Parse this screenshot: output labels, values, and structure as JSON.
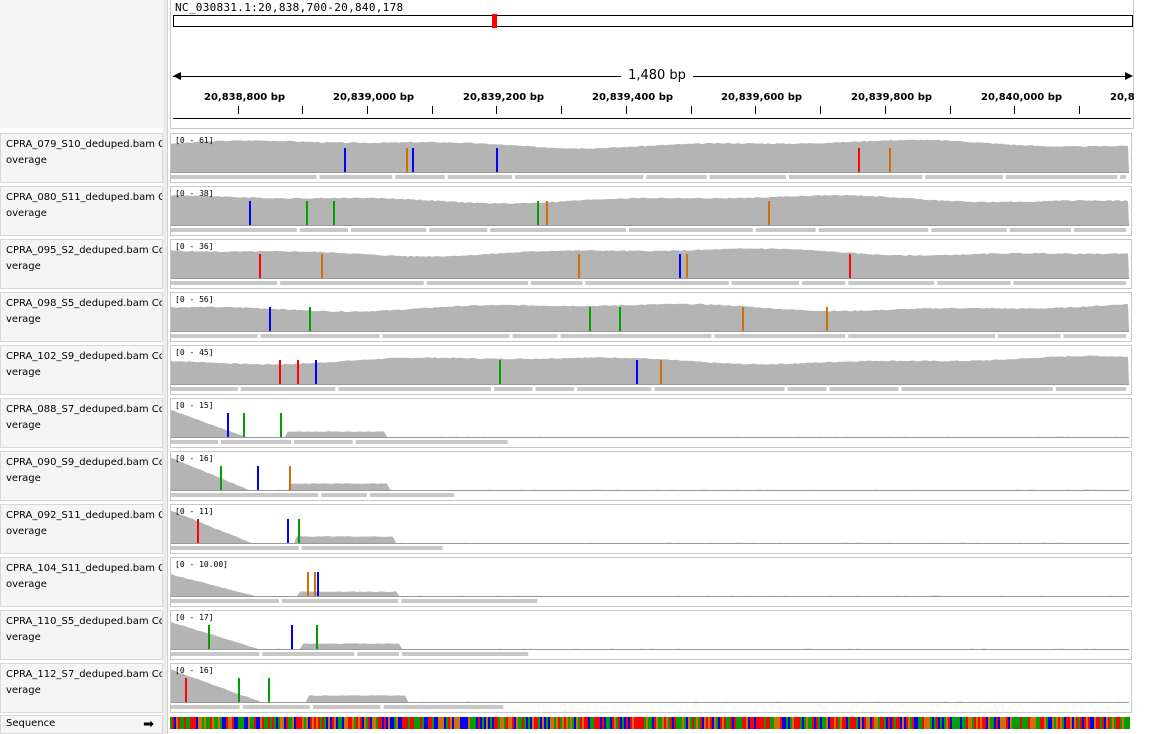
{
  "locus": "NC_030831.1:20,838,700-20,840,178",
  "span_label": "1,480 bp",
  "ruler": {
    "tick_labels": [
      "20,838,800 bp",
      "20,839,000 bp",
      "20,839,200 bp",
      "20,839,400 bp",
      "20,839,600 bp",
      "20,839,800 bp",
      "20,840,000 bp",
      "20,8"
    ]
  },
  "tracks": [
    {
      "name_line1": "CPRA_079_S10_deduped.bam C",
      "name_line2": "overage",
      "range": "[0 - 61]",
      "profile": "high",
      "level": 0.78
    },
    {
      "name_line1": "CPRA_080_S11_deduped.bam C",
      "name_line2": "overage",
      "range": "[0 - 38]",
      "profile": "high",
      "level": 0.72
    },
    {
      "name_line1": "CPRA_095_S2_deduped.bam Co",
      "name_line2": "verage",
      "range": "[0 - 36]",
      "profile": "high",
      "level": 0.72
    },
    {
      "name_line1": "CPRA_098_S5_deduped.bam Co",
      "name_line2": "verage",
      "range": "[0 - 56]",
      "profile": "high",
      "level": 0.66
    },
    {
      "name_line1": "CPRA_102_S9_deduped.bam Co",
      "name_line2": "verage",
      "range": "[0 - 45]",
      "profile": "high",
      "level": 0.66
    },
    {
      "name_line1": "CPRA_088_S7_deduped.bam Co",
      "name_line2": "verage",
      "range": "[0 - 15]",
      "profile": "low",
      "level": 0.25
    },
    {
      "name_line1": "CPRA_090_S9_deduped.bam Co",
      "name_line2": "verage",
      "range": "[0 - 16]",
      "profile": "low",
      "level": 0.3
    },
    {
      "name_line1": "CPRA_092_S11_deduped.bam C",
      "name_line2": "overage",
      "range": "[0 - 11]",
      "profile": "low",
      "level": 0.3
    },
    {
      "name_line1": "CPRA_104_S11_deduped.bam C",
      "name_line2": "overage",
      "range": "[0 - 10.00]",
      "profile": "low",
      "level": 0.2
    },
    {
      "name_line1": "CPRA_110_S5_deduped.bam Co",
      "name_line2": "verage",
      "range": "[0 - 17]",
      "profile": "low",
      "level": 0.25
    },
    {
      "name_line1": "CPRA_112_S7_deduped.bam Co",
      "name_line2": "verage",
      "range": "[0 - 16]",
      "profile": "low",
      "level": 0.3
    }
  ],
  "sequence": {
    "label": "Sequence",
    "arrow": "➡"
  },
  "colors": {
    "coverage": "#b4b4b4",
    "A": "#00a000",
    "C": "#0000ff",
    "G": "#d17105",
    "T": "#ff0000",
    "alignment": "#c8c8c8"
  }
}
